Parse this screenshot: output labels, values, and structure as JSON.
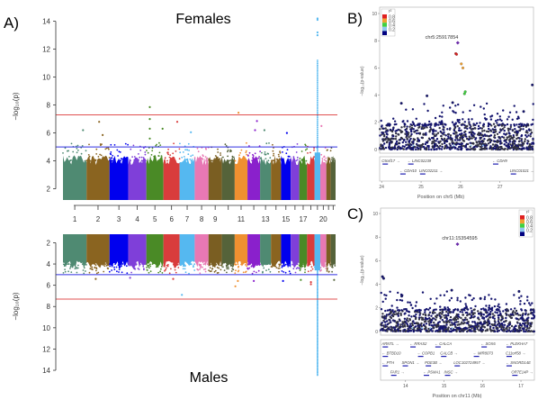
{
  "panel_labels": {
    "a": "A)",
    "b": "B)",
    "c": "C)"
  },
  "chart_data": [
    {
      "id": "females",
      "type": "scatter",
      "subtype": "manhattan",
      "title": "Females",
      "ylabel": "−log₁₀(p)",
      "ylim": [
        1.2,
        14.5
      ],
      "yticks": [
        2,
        4,
        6,
        8,
        10,
        12,
        14
      ],
      "thresholds": [
        {
          "value": 7.3,
          "color": "#e05050"
        },
        {
          "value": 5,
          "color": "#3030e0"
        }
      ],
      "chromosomes": [
        {
          "chr": "1",
          "size_mb": 249,
          "color": "#4f8a72",
          "label": "1"
        },
        {
          "chr": "2",
          "size_mb": 243,
          "color": "#8a6420",
          "label": "2"
        },
        {
          "chr": "3",
          "size_mb": 198,
          "color": "#0000ee",
          "label": "3"
        },
        {
          "chr": "4",
          "size_mb": 191,
          "color": "#7f3fd9",
          "label": "4"
        },
        {
          "chr": "5",
          "size_mb": 181,
          "color": "#4a8a26",
          "label": "5"
        },
        {
          "chr": "6",
          "size_mb": 171,
          "color": "#d93c3c",
          "label": "6"
        },
        {
          "chr": "7",
          "size_mb": 159,
          "color": "#55b8f0",
          "label": "7"
        },
        {
          "chr": "8",
          "size_mb": 146,
          "color": "#e878b4",
          "label": "8"
        },
        {
          "chr": "9",
          "size_mb": 141,
          "color": "#7a5e22",
          "label": "9"
        },
        {
          "chr": "10",
          "size_mb": 136,
          "color": "#55633a",
          "label": ""
        },
        {
          "chr": "11",
          "size_mb": 135,
          "color": "#ef9030",
          "label": "11"
        },
        {
          "chr": "12",
          "size_mb": 133,
          "color": "#8a20cc",
          "label": ""
        },
        {
          "chr": "13",
          "size_mb": 115,
          "color": "#4f8a72",
          "label": "13"
        },
        {
          "chr": "14",
          "size_mb": 107,
          "color": "#8a6420",
          "label": ""
        },
        {
          "chr": "15",
          "size_mb": 102,
          "color": "#0000ee",
          "label": "15"
        },
        {
          "chr": "16",
          "size_mb": 90,
          "color": "#7f3fd9",
          "label": ""
        },
        {
          "chr": "17",
          "size_mb": 83,
          "color": "#4a8a26",
          "label": "17"
        },
        {
          "chr": "18",
          "size_mb": 80,
          "color": "#d93c3c",
          "label": ""
        },
        {
          "chr": "19",
          "size_mb": 59,
          "color": "#55b8f0",
          "label": ""
        },
        {
          "chr": "20",
          "size_mb": 64,
          "color": "#e878b4",
          "label": "20"
        },
        {
          "chr": "21",
          "size_mb": 47,
          "color": "#7a5e22",
          "label": ""
        },
        {
          "chr": "22",
          "size_mb": 51,
          "color": "#55633a",
          "label": ""
        }
      ],
      "notable_points": [
        {
          "chr": "5",
          "pos_frac": 0.2,
          "y": 7.85
        },
        {
          "chr": "5",
          "pos_frac": 0.2,
          "y": 7.0
        },
        {
          "chr": "5",
          "pos_frac": 0.2,
          "y": 6.3
        },
        {
          "chr": "5",
          "pos_frac": 0.2,
          "y": 5.6
        },
        {
          "chr": "5",
          "pos_frac": 0.95,
          "y": 6.3
        },
        {
          "chr": "2",
          "pos_frac": 0.55,
          "y": 6.8
        },
        {
          "chr": "2",
          "pos_frac": 0.7,
          "y": 5.85
        },
        {
          "chr": "6",
          "pos_frac": 0.85,
          "y": 6.8
        },
        {
          "chr": "11",
          "pos_frac": 0.3,
          "y": 7.45
        },
        {
          "chr": "12",
          "pos_frac": 0.75,
          "y": 6.85
        },
        {
          "chr": "12",
          "pos_frac": 0.6,
          "y": 6.2
        },
        {
          "chr": "1",
          "pos_frac": 0.85,
          "y": 6.2
        },
        {
          "chr": "7",
          "pos_frac": 0.75,
          "y": 6.05
        },
        {
          "chr": "13",
          "pos_frac": 0.4,
          "y": 6.2
        },
        {
          "chr": "15",
          "pos_frac": 0.6,
          "y": 6.0
        },
        {
          "chr": "19",
          "pos_frac": 0.5,
          "y": 14.2
        },
        {
          "chr": "19",
          "pos_frac": 0.5,
          "y": 14.1
        },
        {
          "chr": "19",
          "pos_frac": 0.5,
          "y": 13.2
        },
        {
          "chr": "19",
          "pos_frac": 0.5,
          "y": 13.0
        },
        {
          "chr": "20",
          "pos_frac": 0.2,
          "y": 6.5
        }
      ],
      "column_peak": {
        "chr": "19",
        "pos_frac": 0.5,
        "y_from": 4.0,
        "y_to": 11.3
      }
    },
    {
      "id": "males",
      "type": "scatter",
      "subtype": "manhattan",
      "title": "Males",
      "ylabel": "−log₁₀(p)",
      "ylim": [
        1.2,
        14.5
      ],
      "y_inverted": true,
      "yticks": [
        2,
        4,
        6,
        8,
        10,
        12,
        14
      ],
      "thresholds": [
        {
          "value": 7.3,
          "color": "#e05050"
        },
        {
          "value": 5,
          "color": "#3030e0"
        }
      ],
      "notable_points": [
        {
          "chr": "7",
          "pos_frac": 0.15,
          "y": 6.9
        },
        {
          "chr": "11",
          "pos_frac": 0.05,
          "y": 6.1
        },
        {
          "chr": "11",
          "pos_frac": 0.25,
          "y": 5.6
        },
        {
          "chr": "18",
          "pos_frac": 0.5,
          "y": 5.9
        },
        {
          "chr": "18",
          "pos_frac": 0.5,
          "y": 5.7
        },
        {
          "chr": "15",
          "pos_frac": 0.2,
          "y": 5.6
        },
        {
          "chr": "12",
          "pos_frac": 0.5,
          "y": 5.6
        },
        {
          "chr": "17",
          "pos_frac": 0.2,
          "y": 5.5
        },
        {
          "chr": "22",
          "pos_frac": 0.7,
          "y": 5.5
        },
        {
          "chr": "2",
          "pos_frac": 0.4,
          "y": 5.4
        },
        {
          "chr": "4",
          "pos_frac": 0.1,
          "y": 5.3
        },
        {
          "chr": "6",
          "pos_frac": 0.6,
          "y": 5.4
        }
      ],
      "column_peak": {
        "chr": "19",
        "pos_frac": 0.5,
        "y_from": 4.5,
        "y_to": 14.5
      }
    },
    {
      "id": "locus-chr5",
      "type": "scatter",
      "subtype": "locuszoom",
      "xlabel": "Position on chr5 (Mb)",
      "ylabel": "−log₁₀(p-value)",
      "xlim": [
        23.95,
        27.85
      ],
      "ylim": [
        0,
        10
      ],
      "xticks": [
        24,
        25,
        26,
        27
      ],
      "yticks": [
        0,
        2,
        4,
        6,
        8,
        10
      ],
      "lead_snp": {
        "label": "chr5:25917854",
        "x": 25.93,
        "y": 7.85
      },
      "legend": {
        "title": "r²",
        "placement": "top-left",
        "entries": [
          {
            "label": "0.8",
            "color": "#e02020"
          },
          {
            "label": "0.6",
            "color": "#f0a030"
          },
          {
            "label": "0.4",
            "color": "#40d040"
          },
          {
            "label": "0.2",
            "color": "#90c8f0"
          },
          {
            "label": "",
            "color": "#000080"
          }
        ]
      },
      "points": [
        {
          "x": 25.88,
          "y": 7.05,
          "r2": 0.8
        },
        {
          "x": 25.9,
          "y": 7.0,
          "r2": 0.8
        },
        {
          "x": 26.02,
          "y": 6.3,
          "r2": 0.6
        },
        {
          "x": 26.06,
          "y": 6.0,
          "r2": 0.6
        },
        {
          "x": 26.1,
          "y": 4.1,
          "r2": 0.4
        },
        {
          "x": 26.12,
          "y": 4.25,
          "r2": 0.4
        },
        {
          "x": 27.82,
          "y": 4.75,
          "r2": 0.2
        },
        {
          "x": 25.8,
          "y": 3.45,
          "r2": 0.2
        },
        {
          "x": 25.15,
          "y": 3.95,
          "r2": 0.2
        },
        {
          "x": 24.5,
          "y": 3.4,
          "r2": 0.2
        },
        {
          "x": 27.6,
          "y": 2.8,
          "r2": 0.2
        }
      ],
      "genes": [
        {
          "name": "C5orf17",
          "x": 24.0,
          "row": 0,
          "dir": "→"
        },
        {
          "name": "LINC02239",
          "x": 24.65,
          "row": 0,
          "dir": "←"
        },
        {
          "name": "CDH10",
          "x": 24.45,
          "row": 1,
          "dir": "←"
        },
        {
          "name": "LINC02211",
          "x": 24.95,
          "row": 1,
          "dir": "→"
        },
        {
          "name": "CDH9",
          "x": 26.8,
          "row": 0,
          "dir": "←"
        },
        {
          "name": "LINC01021",
          "x": 27.25,
          "row": 1,
          "dir": "→"
        }
      ]
    },
    {
      "id": "locus-chr11",
      "type": "scatter",
      "subtype": "locuszoom",
      "xlabel": "Position on chr11 (Mb)",
      "ylabel": "−log₁₀(p-value)",
      "xlim": [
        13.35,
        17.35
      ],
      "ylim": [
        0,
        10
      ],
      "xticks": [
        14,
        15,
        16,
        17
      ],
      "yticks": [
        0,
        2,
        4,
        6,
        8,
        10
      ],
      "lead_snp": {
        "label": "chr11:15354595",
        "x": 15.35,
        "y": 7.4
      },
      "legend": {
        "title": "r²",
        "placement": "top-right",
        "entries": [
          {
            "label": "0.8",
            "color": "#e02020"
          },
          {
            "label": "0.6",
            "color": "#f0a030"
          },
          {
            "label": "0.4",
            "color": "#40d040"
          },
          {
            "label": "0.2",
            "color": "#90c8f0"
          },
          {
            "label": "",
            "color": "#000080"
          }
        ]
      },
      "points": [
        {
          "x": 13.4,
          "y": 4.65,
          "r2": 0.2
        },
        {
          "x": 13.43,
          "y": 4.5,
          "r2": 0.2
        },
        {
          "x": 15.2,
          "y": 3.5,
          "r2": 0.2
        },
        {
          "x": 16.95,
          "y": 3.4,
          "r2": 0.2
        },
        {
          "x": 13.9,
          "y": 3.0,
          "r2": 0.2
        },
        {
          "x": 15.95,
          "y": 2.8,
          "r2": 0.2
        }
      ],
      "genes": [
        {
          "name": "ARNTL",
          "x": 13.38,
          "row": 0,
          "dir": "→"
        },
        {
          "name": "RRAS2",
          "x": 14.1,
          "row": 0,
          "dir": "←"
        },
        {
          "name": "CALCA",
          "x": 14.75,
          "row": 0,
          "dir": "←"
        },
        {
          "name": "SOX6",
          "x": 15.95,
          "row": 0,
          "dir": "←"
        },
        {
          "name": "PLEKHA7",
          "x": 16.6,
          "row": 0,
          "dir": "←"
        },
        {
          "name": "BTBD10",
          "x": 13.38,
          "row": 1,
          "dir": "←"
        },
        {
          "name": "COPB1",
          "x": 14.3,
          "row": 1,
          "dir": "←"
        },
        {
          "name": "CALCB",
          "x": 14.9,
          "row": 1,
          "dir": "→"
        },
        {
          "name": "MIR8073",
          "x": 15.75,
          "row": 1,
          "dir": "←"
        },
        {
          "name": "C11orf58",
          "x": 16.6,
          "row": 1,
          "dir": "→"
        },
        {
          "name": "PTH",
          "x": 13.38,
          "row": 2,
          "dir": "←"
        },
        {
          "name": "SPON1",
          "x": 13.9,
          "row": 2,
          "dir": "→"
        },
        {
          "name": "PDE3B",
          "x": 14.5,
          "row": 2,
          "dir": "→"
        },
        {
          "name": "LOC102724957",
          "x": 15.25,
          "row": 2,
          "dir": "→"
        },
        {
          "name": "SNORD14E",
          "x": 16.6,
          "row": 2,
          "dir": "←"
        },
        {
          "name": "FAR1",
          "x": 13.6,
          "row": 3,
          "dir": "→"
        },
        {
          "name": "PSMA1",
          "x": 14.45,
          "row": 3,
          "dir": "←"
        },
        {
          "name": "INSC",
          "x": 15.0,
          "row": 3,
          "dir": "→"
        },
        {
          "name": "OR7E14P",
          "x": 16.75,
          "row": 3,
          "dir": "→"
        }
      ]
    }
  ]
}
